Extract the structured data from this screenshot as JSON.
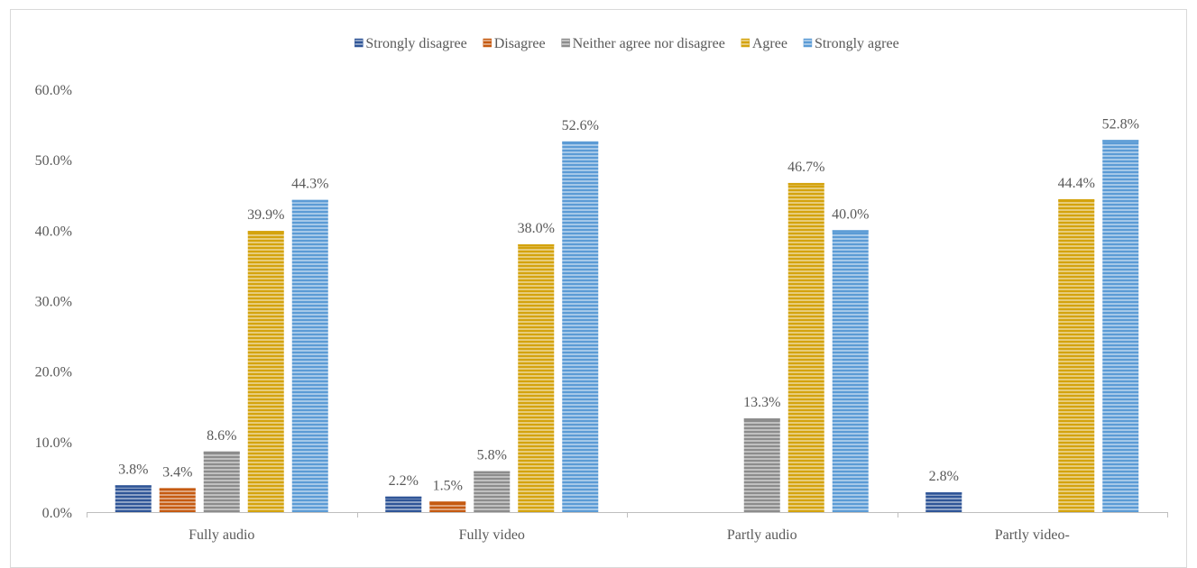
{
  "chart_data": {
    "type": "bar",
    "title": "",
    "xlabel": "",
    "ylabel": "",
    "categories": [
      "Fully audio",
      "Fully video",
      "Partly audio",
      "Partly video-"
    ],
    "series": [
      {
        "name": "Strongly disagree",
        "color": "#2f5597",
        "values": [
          3.8,
          2.2,
          null,
          2.8
        ]
      },
      {
        "name": "Disagree",
        "color": "#c55a11",
        "values": [
          3.4,
          1.5,
          null,
          null
        ]
      },
      {
        "name": "Neither agree nor disagree",
        "color": "#8c8c8c",
        "values": [
          8.6,
          5.8,
          13.3,
          null
        ]
      },
      {
        "name": "Agree",
        "color": "#d4a30d",
        "values": [
          39.9,
          38.0,
          46.7,
          44.4
        ]
      },
      {
        "name": "Strongly agree",
        "color": "#5b9bd5",
        "values": [
          44.3,
          52.6,
          40.0,
          52.8
        ]
      }
    ],
    "data_labels": [
      [
        "3.8%",
        "2.2%",
        "",
        "2.8%"
      ],
      [
        "3.4%",
        "1.5%",
        "",
        ""
      ],
      [
        "8.6%",
        "5.8%",
        "13.3%",
        ""
      ],
      [
        "39.9%",
        "38.0%",
        "46.7%",
        "44.4%"
      ],
      [
        "44.3%",
        "52.6%",
        "40.0%",
        "52.8%"
      ]
    ],
    "ylim": [
      0,
      60
    ],
    "yticks": [
      "0.0%",
      "10.0%",
      "20.0%",
      "30.0%",
      "40.0%",
      "50.0%",
      "60.0%"
    ],
    "legend_position": "top",
    "grid": false,
    "bar_style": "horizontal-stripes"
  }
}
